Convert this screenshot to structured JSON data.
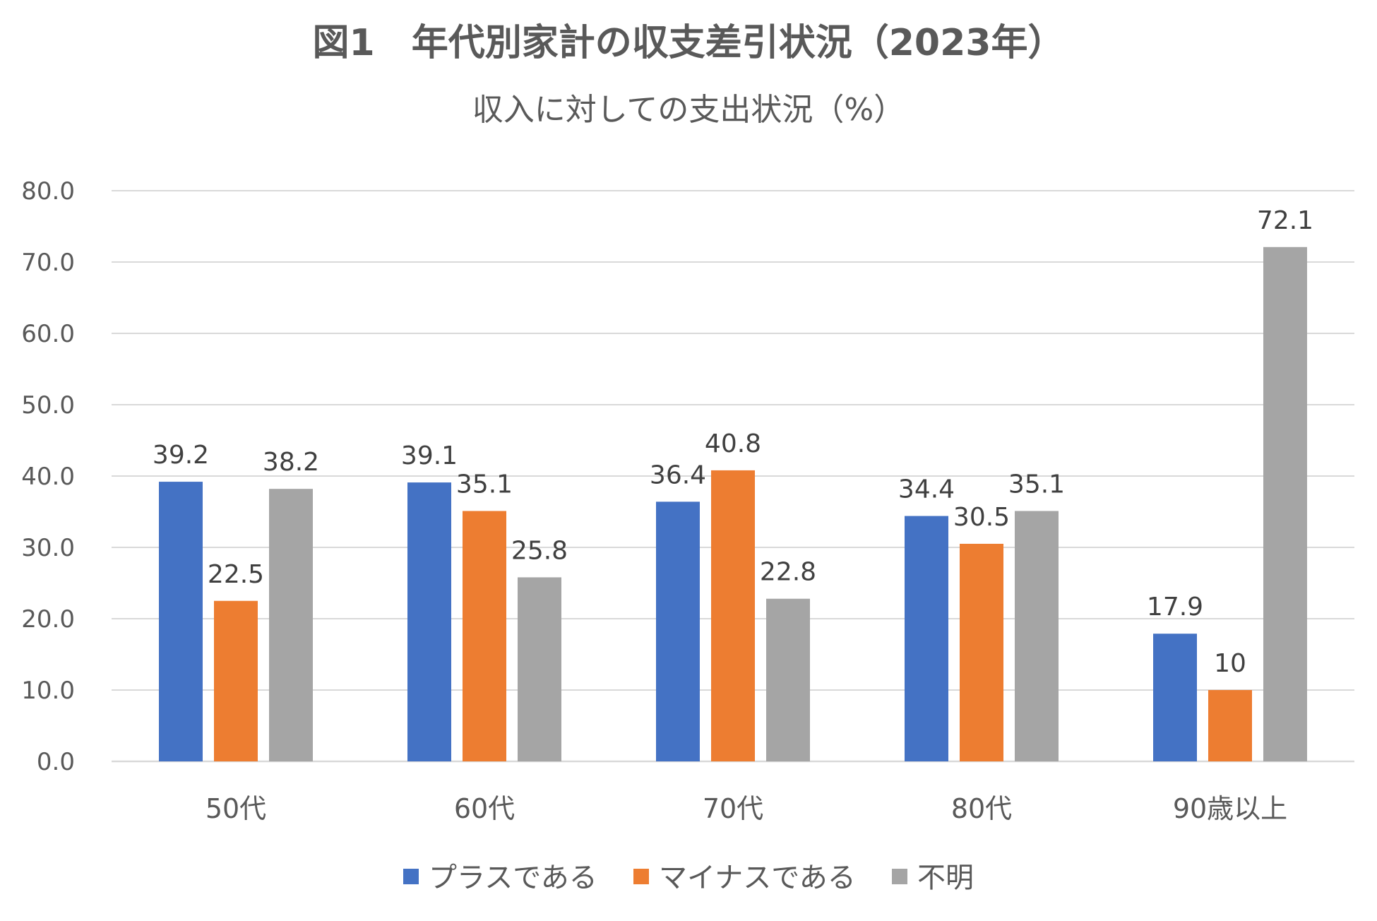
{
  "chart_data": {
    "type": "bar",
    "title": "図1　年代別家計の収支差引状況（2023年）",
    "subtitle": "収入に対しての支出状況（%）",
    "xlabel": "",
    "ylabel": "",
    "categories": [
      "50代",
      "60代",
      "70代",
      "80代",
      "90歳以上"
    ],
    "series": [
      {
        "name": "プラスである",
        "color": "#4472C4",
        "values": [
          39.2,
          39.1,
          36.4,
          34.4,
          17.9
        ],
        "labels": [
          "39.2",
          "39.1",
          "36.4",
          "34.4",
          "17.9"
        ]
      },
      {
        "name": "マイナスである",
        "color": "#ED7D31",
        "values": [
          22.5,
          35.1,
          40.8,
          30.5,
          10
        ],
        "labels": [
          "22.5",
          "35.1",
          "40.8",
          "30.5",
          "10"
        ]
      },
      {
        "name": "不明",
        "color": "#A5A5A5",
        "values": [
          38.2,
          25.8,
          22.8,
          35.1,
          72.1
        ],
        "labels": [
          "38.2",
          "25.8",
          "22.8",
          "35.1",
          "72.1"
        ]
      }
    ],
    "ylim": [
      0,
      80
    ],
    "yticks": [
      "0.0",
      "10.0",
      "20.0",
      "30.0",
      "40.0",
      "50.0",
      "60.0",
      "70.0",
      "80.0"
    ],
    "grid": true,
    "legend": "bottom",
    "data_labels": true
  }
}
